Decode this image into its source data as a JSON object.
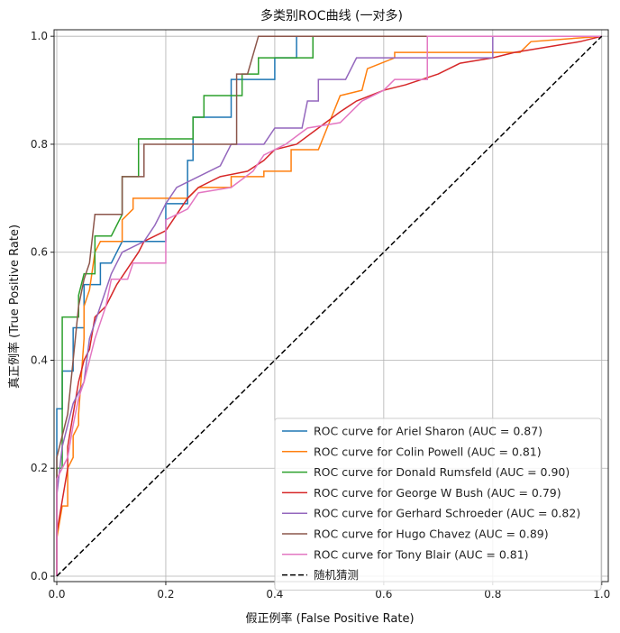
{
  "chart_data": {
    "type": "line",
    "title": "多类别ROC曲线 (一对多)",
    "xlabel": "假正例率 (False Positive Rate)",
    "ylabel": "真正例率 (True Positive Rate)",
    "xlim": [
      0,
      1
    ],
    "ylim": [
      0,
      1
    ],
    "xticks": [
      "0.0",
      "0.2",
      "0.4",
      "0.6",
      "0.8",
      "1.0"
    ],
    "yticks": [
      "0.0",
      "0.2",
      "0.4",
      "0.6",
      "0.8",
      "1.0"
    ],
    "grid": true,
    "legend_position": "lower-right",
    "series": [
      {
        "name": "ROC curve for Ariel Sharon (AUC = 0.87)",
        "color": "#1f77b4",
        "points": [
          [
            0,
            0
          ],
          [
            0,
            0.31
          ],
          [
            0.01,
            0.31
          ],
          [
            0.01,
            0.38
          ],
          [
            0.03,
            0.38
          ],
          [
            0.03,
            0.46
          ],
          [
            0.05,
            0.46
          ],
          [
            0.05,
            0.54
          ],
          [
            0.08,
            0.54
          ],
          [
            0.08,
            0.58
          ],
          [
            0.1,
            0.58
          ],
          [
            0.12,
            0.62
          ],
          [
            0.2,
            0.62
          ],
          [
            0.2,
            0.69
          ],
          [
            0.24,
            0.69
          ],
          [
            0.24,
            0.77
          ],
          [
            0.25,
            0.77
          ],
          [
            0.25,
            0.85
          ],
          [
            0.32,
            0.85
          ],
          [
            0.32,
            0.92
          ],
          [
            0.4,
            0.92
          ],
          [
            0.4,
            0.96
          ],
          [
            0.44,
            0.96
          ],
          [
            0.44,
            1.0
          ],
          [
            1.0,
            1.0
          ]
        ]
      },
      {
        "name": "ROC curve for Colin Powell (AUC = 0.81)",
        "color": "#ff7f0e",
        "points": [
          [
            0,
            0
          ],
          [
            0,
            0.07
          ],
          [
            0.01,
            0.13
          ],
          [
            0.02,
            0.13
          ],
          [
            0.02,
            0.2
          ],
          [
            0.03,
            0.22
          ],
          [
            0.03,
            0.26
          ],
          [
            0.04,
            0.28
          ],
          [
            0.04,
            0.3
          ],
          [
            0.05,
            0.44
          ],
          [
            0.05,
            0.5
          ],
          [
            0.06,
            0.53
          ],
          [
            0.07,
            0.6
          ],
          [
            0.08,
            0.62
          ],
          [
            0.12,
            0.62
          ],
          [
            0.12,
            0.66
          ],
          [
            0.14,
            0.68
          ],
          [
            0.14,
            0.7
          ],
          [
            0.24,
            0.7
          ],
          [
            0.26,
            0.72
          ],
          [
            0.32,
            0.72
          ],
          [
            0.32,
            0.74
          ],
          [
            0.38,
            0.74
          ],
          [
            0.38,
            0.75
          ],
          [
            0.43,
            0.75
          ],
          [
            0.43,
            0.79
          ],
          [
            0.48,
            0.79
          ],
          [
            0.5,
            0.84
          ],
          [
            0.52,
            0.89
          ],
          [
            0.56,
            0.9
          ],
          [
            0.57,
            0.94
          ],
          [
            0.62,
            0.96
          ],
          [
            0.62,
            0.97
          ],
          [
            0.85,
            0.97
          ],
          [
            0.87,
            0.99
          ],
          [
            1.0,
            1.0
          ]
        ]
      },
      {
        "name": "ROC curve for Donald Rumsfeld (AUC = 0.90)",
        "color": "#2ca02c",
        "points": [
          [
            0,
            0
          ],
          [
            0,
            0.2
          ],
          [
            0.01,
            0.2
          ],
          [
            0.01,
            0.48
          ],
          [
            0.04,
            0.48
          ],
          [
            0.04,
            0.52
          ],
          [
            0.05,
            0.56
          ],
          [
            0.07,
            0.56
          ],
          [
            0.07,
            0.63
          ],
          [
            0.1,
            0.63
          ],
          [
            0.12,
            0.67
          ],
          [
            0.12,
            0.74
          ],
          [
            0.15,
            0.74
          ],
          [
            0.15,
            0.81
          ],
          [
            0.25,
            0.81
          ],
          [
            0.25,
            0.85
          ],
          [
            0.27,
            0.85
          ],
          [
            0.27,
            0.89
          ],
          [
            0.34,
            0.89
          ],
          [
            0.34,
            0.93
          ],
          [
            0.37,
            0.93
          ],
          [
            0.37,
            0.96
          ],
          [
            0.47,
            0.96
          ],
          [
            0.47,
            1.0
          ],
          [
            1.0,
            1.0
          ]
        ]
      },
      {
        "name": "ROC curve for George W Bush (AUC = 0.79)",
        "color": "#d62728",
        "points": [
          [
            0,
            0
          ],
          [
            0,
            0.08
          ],
          [
            0.01,
            0.14
          ],
          [
            0.02,
            0.2
          ],
          [
            0.02,
            0.24
          ],
          [
            0.03,
            0.3
          ],
          [
            0.04,
            0.36
          ],
          [
            0.05,
            0.4
          ],
          [
            0.06,
            0.42
          ],
          [
            0.07,
            0.48
          ],
          [
            0.09,
            0.5
          ],
          [
            0.1,
            0.52
          ],
          [
            0.11,
            0.54
          ],
          [
            0.13,
            0.57
          ],
          [
            0.15,
            0.6
          ],
          [
            0.16,
            0.62
          ],
          [
            0.2,
            0.64
          ],
          [
            0.22,
            0.67
          ],
          [
            0.24,
            0.7
          ],
          [
            0.26,
            0.72
          ],
          [
            0.3,
            0.74
          ],
          [
            0.35,
            0.75
          ],
          [
            0.38,
            0.77
          ],
          [
            0.4,
            0.79
          ],
          [
            0.44,
            0.8
          ],
          [
            0.48,
            0.83
          ],
          [
            0.52,
            0.86
          ],
          [
            0.55,
            0.88
          ],
          [
            0.6,
            0.9
          ],
          [
            0.64,
            0.91
          ],
          [
            0.7,
            0.93
          ],
          [
            0.74,
            0.95
          ],
          [
            0.8,
            0.96
          ],
          [
            0.84,
            0.97
          ],
          [
            0.9,
            0.98
          ],
          [
            0.96,
            0.99
          ],
          [
            1.0,
            1.0
          ]
        ]
      },
      {
        "name": "ROC curve for Gerhard Schroeder (AUC = 0.82)",
        "color": "#9467bd",
        "points": [
          [
            0,
            0
          ],
          [
            0,
            0.15
          ],
          [
            0.01,
            0.24
          ],
          [
            0.02,
            0.28
          ],
          [
            0.03,
            0.32
          ],
          [
            0.05,
            0.36
          ],
          [
            0.06,
            0.44
          ],
          [
            0.08,
            0.5
          ],
          [
            0.1,
            0.56
          ],
          [
            0.12,
            0.6
          ],
          [
            0.16,
            0.62
          ],
          [
            0.18,
            0.65
          ],
          [
            0.2,
            0.69
          ],
          [
            0.22,
            0.72
          ],
          [
            0.3,
            0.76
          ],
          [
            0.32,
            0.8
          ],
          [
            0.38,
            0.8
          ],
          [
            0.4,
            0.83
          ],
          [
            0.45,
            0.83
          ],
          [
            0.46,
            0.88
          ],
          [
            0.48,
            0.88
          ],
          [
            0.48,
            0.92
          ],
          [
            0.53,
            0.92
          ],
          [
            0.55,
            0.96
          ],
          [
            0.8,
            0.96
          ],
          [
            0.8,
            1.0
          ],
          [
            1.0,
            1.0
          ]
        ]
      },
      {
        "name": "ROC curve for Hugo Chavez (AUC = 0.89)",
        "color": "#8c564b",
        "points": [
          [
            0,
            0
          ],
          [
            0,
            0.22
          ],
          [
            0.01,
            0.26
          ],
          [
            0.02,
            0.3
          ],
          [
            0.04,
            0.5
          ],
          [
            0.05,
            0.55
          ],
          [
            0.06,
            0.58
          ],
          [
            0.07,
            0.67
          ],
          [
            0.12,
            0.67
          ],
          [
            0.12,
            0.74
          ],
          [
            0.16,
            0.74
          ],
          [
            0.16,
            0.8
          ],
          [
            0.33,
            0.8
          ],
          [
            0.33,
            0.93
          ],
          [
            0.35,
            0.93
          ],
          [
            0.37,
            1.0
          ],
          [
            1.0,
            1.0
          ]
        ]
      },
      {
        "name": "ROC curve for Tony Blair (AUC = 0.81)",
        "color": "#e377c2",
        "points": [
          [
            0,
            0
          ],
          [
            0,
            0.18
          ],
          [
            0.01,
            0.2
          ],
          [
            0.02,
            0.22
          ],
          [
            0.03,
            0.28
          ],
          [
            0.04,
            0.33
          ],
          [
            0.05,
            0.36
          ],
          [
            0.07,
            0.44
          ],
          [
            0.09,
            0.5
          ],
          [
            0.1,
            0.55
          ],
          [
            0.13,
            0.55
          ],
          [
            0.14,
            0.58
          ],
          [
            0.2,
            0.58
          ],
          [
            0.2,
            0.66
          ],
          [
            0.24,
            0.68
          ],
          [
            0.26,
            0.71
          ],
          [
            0.32,
            0.72
          ],
          [
            0.36,
            0.75
          ],
          [
            0.38,
            0.78
          ],
          [
            0.42,
            0.8
          ],
          [
            0.46,
            0.83
          ],
          [
            0.52,
            0.84
          ],
          [
            0.56,
            0.88
          ],
          [
            0.6,
            0.9
          ],
          [
            0.62,
            0.92
          ],
          [
            0.68,
            0.92
          ],
          [
            0.68,
            1.0
          ],
          [
            1.0,
            1.0
          ]
        ]
      },
      {
        "name": "随机猜测",
        "color": "#000000",
        "dashed": true,
        "points": [
          [
            0,
            0
          ],
          [
            1,
            1
          ]
        ]
      }
    ]
  }
}
